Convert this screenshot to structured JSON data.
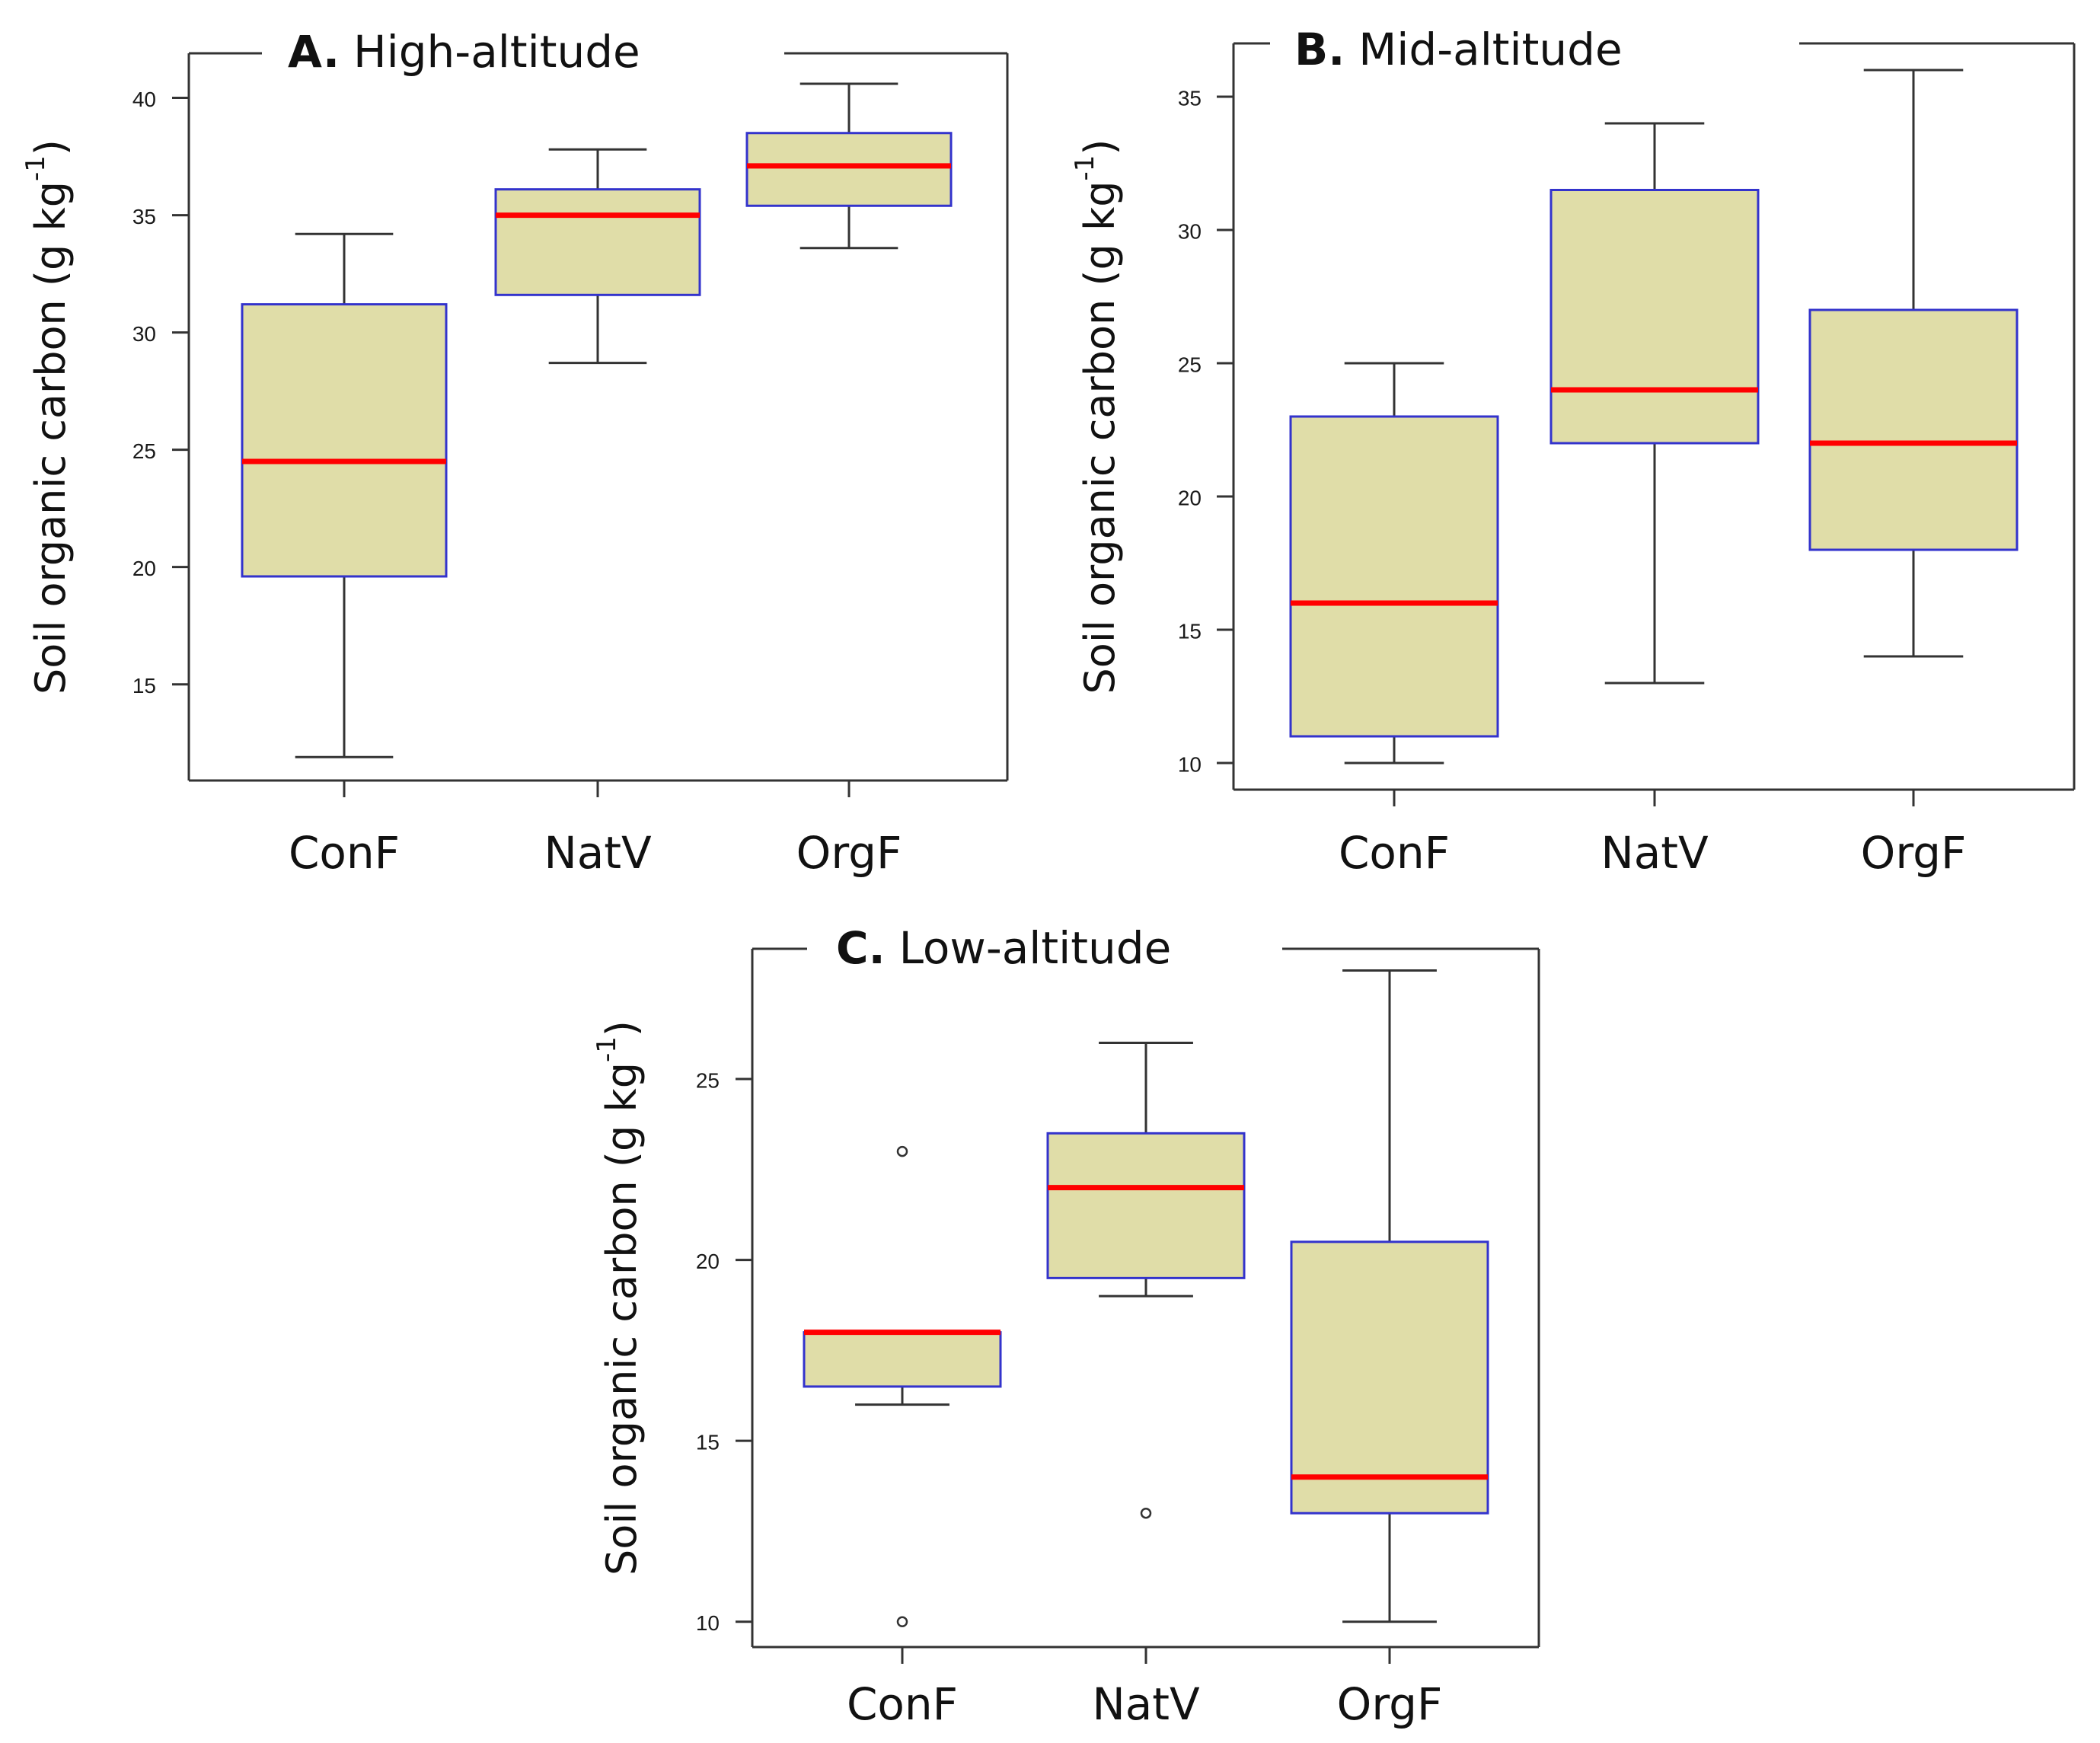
{
  "figure": {
    "colors": {
      "box_fill": "#E0DDA8",
      "box_border": "#3333CC",
      "median": "#FF0000",
      "axis": "#333333",
      "whisker": "#333333"
    }
  },
  "chart_data": [
    {
      "type": "boxplot",
      "panel_label": "A.",
      "title": "High-altitude",
      "ylabel": {
        "main": "Soil organic carbon (g kg",
        "sup": "-1",
        "close": ")"
      },
      "categories": [
        "ConF",
        "NatV",
        "OrgF"
      ],
      "yticks": [
        15,
        20,
        25,
        30,
        35,
        40
      ],
      "ylim": [
        10.9,
        41.9
      ],
      "boxes": [
        {
          "name": "ConF",
          "whisker_low": 11.9,
          "q1": 19.6,
          "median": 24.5,
          "q3": 31.2,
          "whisker_high": 34.2,
          "outliers": []
        },
        {
          "name": "NatV",
          "whisker_low": 28.7,
          "q1": 31.6,
          "median": 35.0,
          "q3": 36.1,
          "whisker_high": 37.8,
          "outliers": []
        },
        {
          "name": "OrgF",
          "whisker_low": 33.6,
          "q1": 35.4,
          "median": 37.1,
          "q3": 38.5,
          "whisker_high": 40.6,
          "outliers": []
        }
      ]
    },
    {
      "type": "boxplot",
      "panel_label": "B.",
      "title": "Mid-altitude",
      "ylabel": {
        "main": "Soil organic carbon (g kg",
        "sup": "-1",
        "close": ")"
      },
      "categories": [
        "ConF",
        "NatV",
        "OrgF"
      ],
      "yticks": [
        10,
        15,
        20,
        25,
        30,
        35
      ],
      "ylim": [
        9.0,
        37.0
      ],
      "boxes": [
        {
          "name": "ConF",
          "whisker_low": 10,
          "q1": 11,
          "median": 16,
          "q3": 23,
          "whisker_high": 25,
          "outliers": []
        },
        {
          "name": "NatV",
          "whisker_low": 13,
          "q1": 22,
          "median": 24,
          "q3": 31.5,
          "whisker_high": 34,
          "outliers": []
        },
        {
          "name": "OrgF",
          "whisker_low": 14,
          "q1": 18,
          "median": 22,
          "q3": 27,
          "whisker_high": 36,
          "outliers": []
        }
      ]
    },
    {
      "type": "boxplot",
      "panel_label": "C.",
      "title": "Low-altitude",
      "ylabel": {
        "main": "Soil organic carbon (g kg",
        "sup": "-1",
        "close": ")"
      },
      "categories": [
        "ConF",
        "NatV",
        "OrgF"
      ],
      "yticks": [
        10,
        15,
        20,
        25
      ],
      "ylim": [
        9.3,
        28.6
      ],
      "boxes": [
        {
          "name": "ConF",
          "whisker_low": 16,
          "q1": 16.5,
          "median": 18,
          "q3": 18,
          "whisker_high": 18,
          "outliers": [
            23,
            10
          ]
        },
        {
          "name": "NatV",
          "whisker_low": 19,
          "q1": 19.5,
          "median": 22,
          "q3": 23.5,
          "whisker_high": 26,
          "outliers": [
            13
          ]
        },
        {
          "name": "OrgF",
          "whisker_low": 10,
          "q1": 13,
          "median": 14,
          "q3": 20.5,
          "whisker_high": 28,
          "outliers": []
        }
      ]
    }
  ]
}
